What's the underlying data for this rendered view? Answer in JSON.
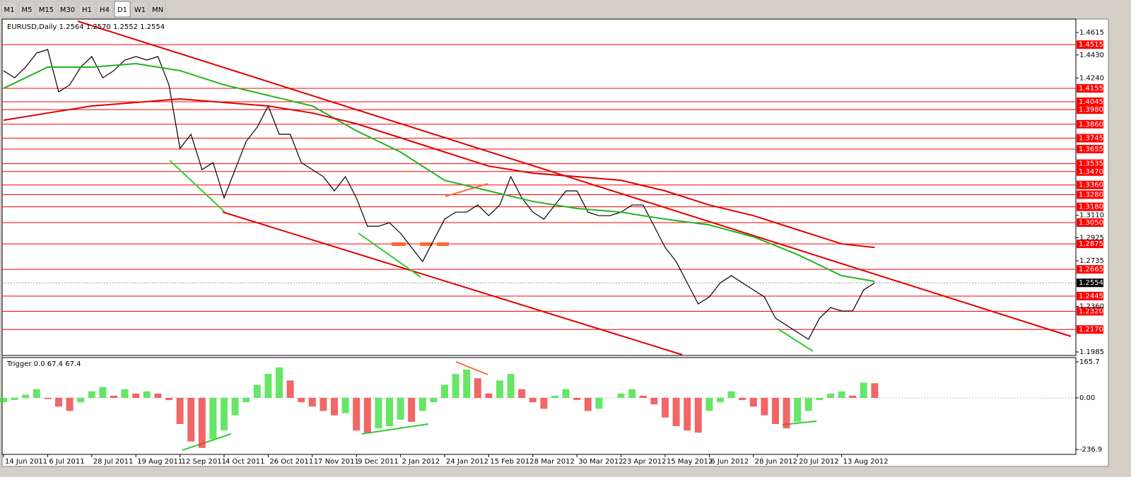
{
  "toolbar": {
    "timeframes": [
      "M1",
      "M5",
      "M15",
      "M30",
      "H1",
      "H4",
      "D1",
      "W1",
      "MN"
    ],
    "active": "D1"
  },
  "chart_data": [
    {
      "type": "price",
      "title": "EURUSD,Daily  1.2564 1.2570 1.2552 1.2554",
      "categories": [
        "14 Jun 2011",
        null,
        null,
        null,
        "6 Jul 2011",
        null,
        null,
        null,
        "28 Jul 2011",
        null,
        null,
        null,
        "19 Aug 2011",
        null,
        null,
        null,
        "12 Sep 2011",
        null,
        null,
        null,
        "4 Oct 2011",
        null,
        null,
        null,
        "26 Oct 2011",
        null,
        null,
        null,
        "17 Nov 2011",
        null,
        null,
        null,
        "9 Dec 2011",
        null,
        null,
        null,
        "2 Jan 2012",
        null,
        null,
        null,
        "24 Jan 2012",
        null,
        null,
        null,
        "15 Feb 2012",
        null,
        null,
        null,
        "8 Mar 2012",
        null,
        null,
        null,
        "30 Mar 2012",
        null,
        null,
        null,
        "23 Apr 2012",
        null,
        null,
        null,
        "15 May 2012",
        null,
        null,
        null,
        "6 Jun 2012",
        null,
        null,
        null,
        "28 Jun 2012",
        null,
        null,
        null,
        "20 Jul 2012",
        null,
        null,
        null,
        "13 Aug 2012",
        null,
        null,
        null
      ],
      "series": [
        {
          "color": "#000000",
          "values": [
            1.4301,
            1.4242,
            1.433,
            1.4446,
            1.4475,
            1.4126,
            1.4184,
            1.433,
            1.4417,
            1.4242,
            1.4301,
            1.4388,
            1.4417,
            1.4388,
            1.4417,
            1.4184,
            1.366,
            1.3777,
            1.3486,
            1.3544,
            1.3253,
            1.3486,
            1.3718,
            1.3835,
            1.401,
            1.3777,
            1.3777,
            1.3544,
            1.3486,
            1.3428,
            1.3311,
            1.3428,
            1.3253,
            1.302,
            1.302,
            1.3049,
            1.2962,
            1.2845,
            1.2729,
            1.2904,
            1.3078,
            1.3136,
            1.3136,
            1.3195,
            1.3107,
            1.3195,
            1.3428,
            1.3253,
            1.3136,
            1.3078,
            1.3195,
            1.3311,
            1.3311,
            1.3136,
            1.3107,
            1.3107,
            1.3136,
            1.3195,
            1.3195,
            1.302,
            1.2845,
            1.2729,
            1.2554,
            1.238,
            1.2438,
            1.2554,
            1.2613,
            1.2554,
            1.2496,
            1.2438,
            1.2263,
            1.2205,
            1.2147,
            1.2089,
            1.2263,
            1.2351,
            1.2322,
            1.2322,
            1.2496,
            1.2554
          ]
        },
        {
          "color": "#22b322",
          "x": [
            0,
            4,
            8,
            12,
            16,
            20,
            24,
            28,
            32,
            36,
            40,
            44,
            48,
            52,
            56,
            60,
            64,
            68,
            72,
            76,
            79
          ],
          "values": [
            1.4155,
            1.433,
            1.433,
            1.4359,
            1.4301,
            1.4184,
            1.4097,
            1.401,
            1.3806,
            1.3631,
            1.3398,
            1.3311,
            1.3224,
            1.3166,
            1.3136,
            1.3078,
            1.3031,
            1.2933,
            1.2787,
            1.2613,
            1.2566
          ]
        },
        {
          "color": "#dd0000",
          "x": [
            0,
            4,
            8,
            12,
            16,
            20,
            24,
            28,
            32,
            36,
            40,
            44,
            48,
            52,
            56,
            60,
            64,
            68,
            72,
            76,
            79
          ],
          "values": [
            1.3893,
            1.3952,
            1.401,
            1.4039,
            1.4068,
            1.4039,
            1.401,
            1.3952,
            1.3864,
            1.3748,
            1.3631,
            1.3515,
            1.3457,
            1.3428,
            1.3398,
            1.3311,
            1.3195,
            1.3107,
            1.2991,
            1.2875,
            1.2845
          ]
        }
      ],
      "ylim": [
        1.1962,
        1.4708
      ],
      "yticks": [
        1.4615,
        {
          "value": 1.443,
          "label": "1.4430"
        },
        {
          "value": 1.424,
          "label": "1.4240"
        },
        {
          "value": 1.311,
          "label": "1.3110"
        },
        1.2925,
        1.2735,
        {
          "value": 1.236,
          "label": "1.2360"
        },
        1.1985
      ],
      "levels": [
        1.4515,
        1.4155,
        1.4045,
        {
          "value": 1.398,
          "label": "1.3980"
        },
        {
          "value": 1.386,
          "label": "1.3860"
        },
        1.3745,
        1.3655,
        1.3535,
        {
          "value": 1.347,
          "label": "1.3470"
        },
        {
          "value": 1.336,
          "label": "1.3360"
        },
        {
          "value": 1.328,
          "label": "1.3280"
        },
        {
          "value": 1.318,
          "label": "1.3180"
        },
        {
          "value": 1.305,
          "label": "1.3050"
        },
        1.2875,
        1.2665,
        1.2445,
        {
          "value": 1.232,
          "label": "1.2320"
        },
        {
          "value": 1.217,
          "label": "1.2170"
        }
      ],
      "level_color": "#ff0000",
      "last_price": 1.2554
    },
    {
      "type": "histogram",
      "title": "Trigger 0.0 67.4 67.4",
      "values": [
        -20,
        -10,
        15,
        40,
        -5,
        -40,
        -60,
        -20,
        30,
        50,
        10,
        40,
        20,
        30,
        20,
        -10,
        -120,
        -200,
        -230,
        -190,
        -150,
        -80,
        -20,
        60,
        110,
        140,
        80,
        -20,
        -40,
        -60,
        -80,
        -70,
        -150,
        -160,
        -140,
        -130,
        -100,
        -110,
        -60,
        -20,
        60,
        110,
        130,
        90,
        20,
        80,
        110,
        40,
        -20,
        -50,
        10,
        40,
        -10,
        -60,
        -50,
        0,
        20,
        40,
        10,
        -30,
        -90,
        -130,
        -150,
        -160,
        -60,
        -20,
        30,
        -10,
        -40,
        -80,
        -120,
        -140,
        -110,
        -60,
        -10,
        20,
        30,
        10,
        70,
        67.4
      ],
      "rise_color": "#33dd33",
      "fall_color": "#ee3333",
      "ylim": [
        -236.9,
        165.7
      ],
      "yticks": [
        165.7,
        {
          "value": 0,
          "label": "0.00"
        },
        -236.9
      ]
    }
  ]
}
